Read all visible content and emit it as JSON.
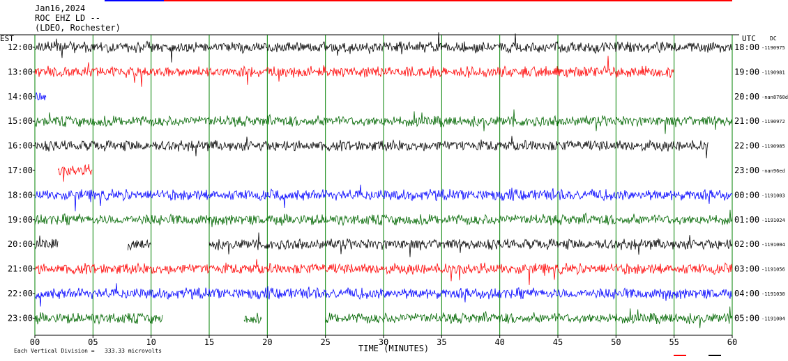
{
  "header": {
    "date": "Jan16,2024",
    "station": "ROC EHZ LD --",
    "network": "(LDEO, Rochester)"
  },
  "left_tz": "EST",
  "right_tz": "UTC",
  "dc_label": "DC",
  "colors": {
    "black": "#000000",
    "red": "#ff0000",
    "blue": "#0000ff",
    "green": "#006600",
    "grid": "#008000"
  },
  "chart_data": {
    "type": "line",
    "title": "",
    "xlabel": "TIME (MINUTES)",
    "ylabel": "",
    "xlim": [
      0,
      60
    ],
    "x_ticks": [
      "00",
      "05",
      "10",
      "15",
      "20",
      "25",
      "30",
      "35",
      "40",
      "45",
      "50",
      "55",
      "60"
    ],
    "grid": "vertical lines every 5 minutes",
    "scale_label": "Each Vertical Division =",
    "scale_value": "333.33 microvolts",
    "rows": [
      {
        "est": "12:00",
        "utc": "18:00",
        "dc": "-1190975",
        "color": "black",
        "start_min": 0,
        "end_min": 60
      },
      {
        "est": "13:00",
        "utc": "19:00",
        "dc": "-1190981",
        "color": "red",
        "start_min": 0,
        "end_min": 55
      },
      {
        "est": "14:00",
        "utc": "20:00",
        "dc": "-nan8760d",
        "color": "blue",
        "start_min": 0,
        "end_min": 1
      },
      {
        "est": "15:00",
        "utc": "21:00",
        "dc": "-1190972",
        "color": "green",
        "start_min": 0,
        "end_min": 60
      },
      {
        "est": "16:00",
        "utc": "22:00",
        "dc": "-1190985",
        "color": "black",
        "start_min": 0,
        "end_min": 58
      },
      {
        "est": "17:00",
        "utc": "23:00",
        "dc": "-nan96ed",
        "color": "red",
        "start_min": 2,
        "end_min": 5
      },
      {
        "est": "18:00",
        "utc": "00:00",
        "dc": "-1191003",
        "color": "blue",
        "start_min": 0,
        "end_min": 60
      },
      {
        "est": "19:00",
        "utc": "01:00",
        "dc": "-1191024",
        "color": "green",
        "start_min": 0,
        "end_min": 60
      },
      {
        "est": "20:00",
        "utc": "02:00",
        "dc": "-1191004",
        "color": "black",
        "segments": [
          [
            0,
            2
          ],
          [
            8,
            10
          ],
          [
            15,
            60
          ]
        ]
      },
      {
        "est": "21:00",
        "utc": "03:00",
        "dc": "-1191056",
        "color": "red",
        "start_min": 0,
        "end_min": 60
      },
      {
        "est": "22:00",
        "utc": "04:00",
        "dc": "-1191030",
        "color": "blue",
        "start_min": 0,
        "end_min": 60
      },
      {
        "est": "23:00",
        "utc": "05:00",
        "dc": "-1191004",
        "color": "green",
        "segments": [
          [
            0,
            11
          ],
          [
            18,
            19.5
          ],
          [
            25,
            60
          ]
        ]
      }
    ]
  }
}
